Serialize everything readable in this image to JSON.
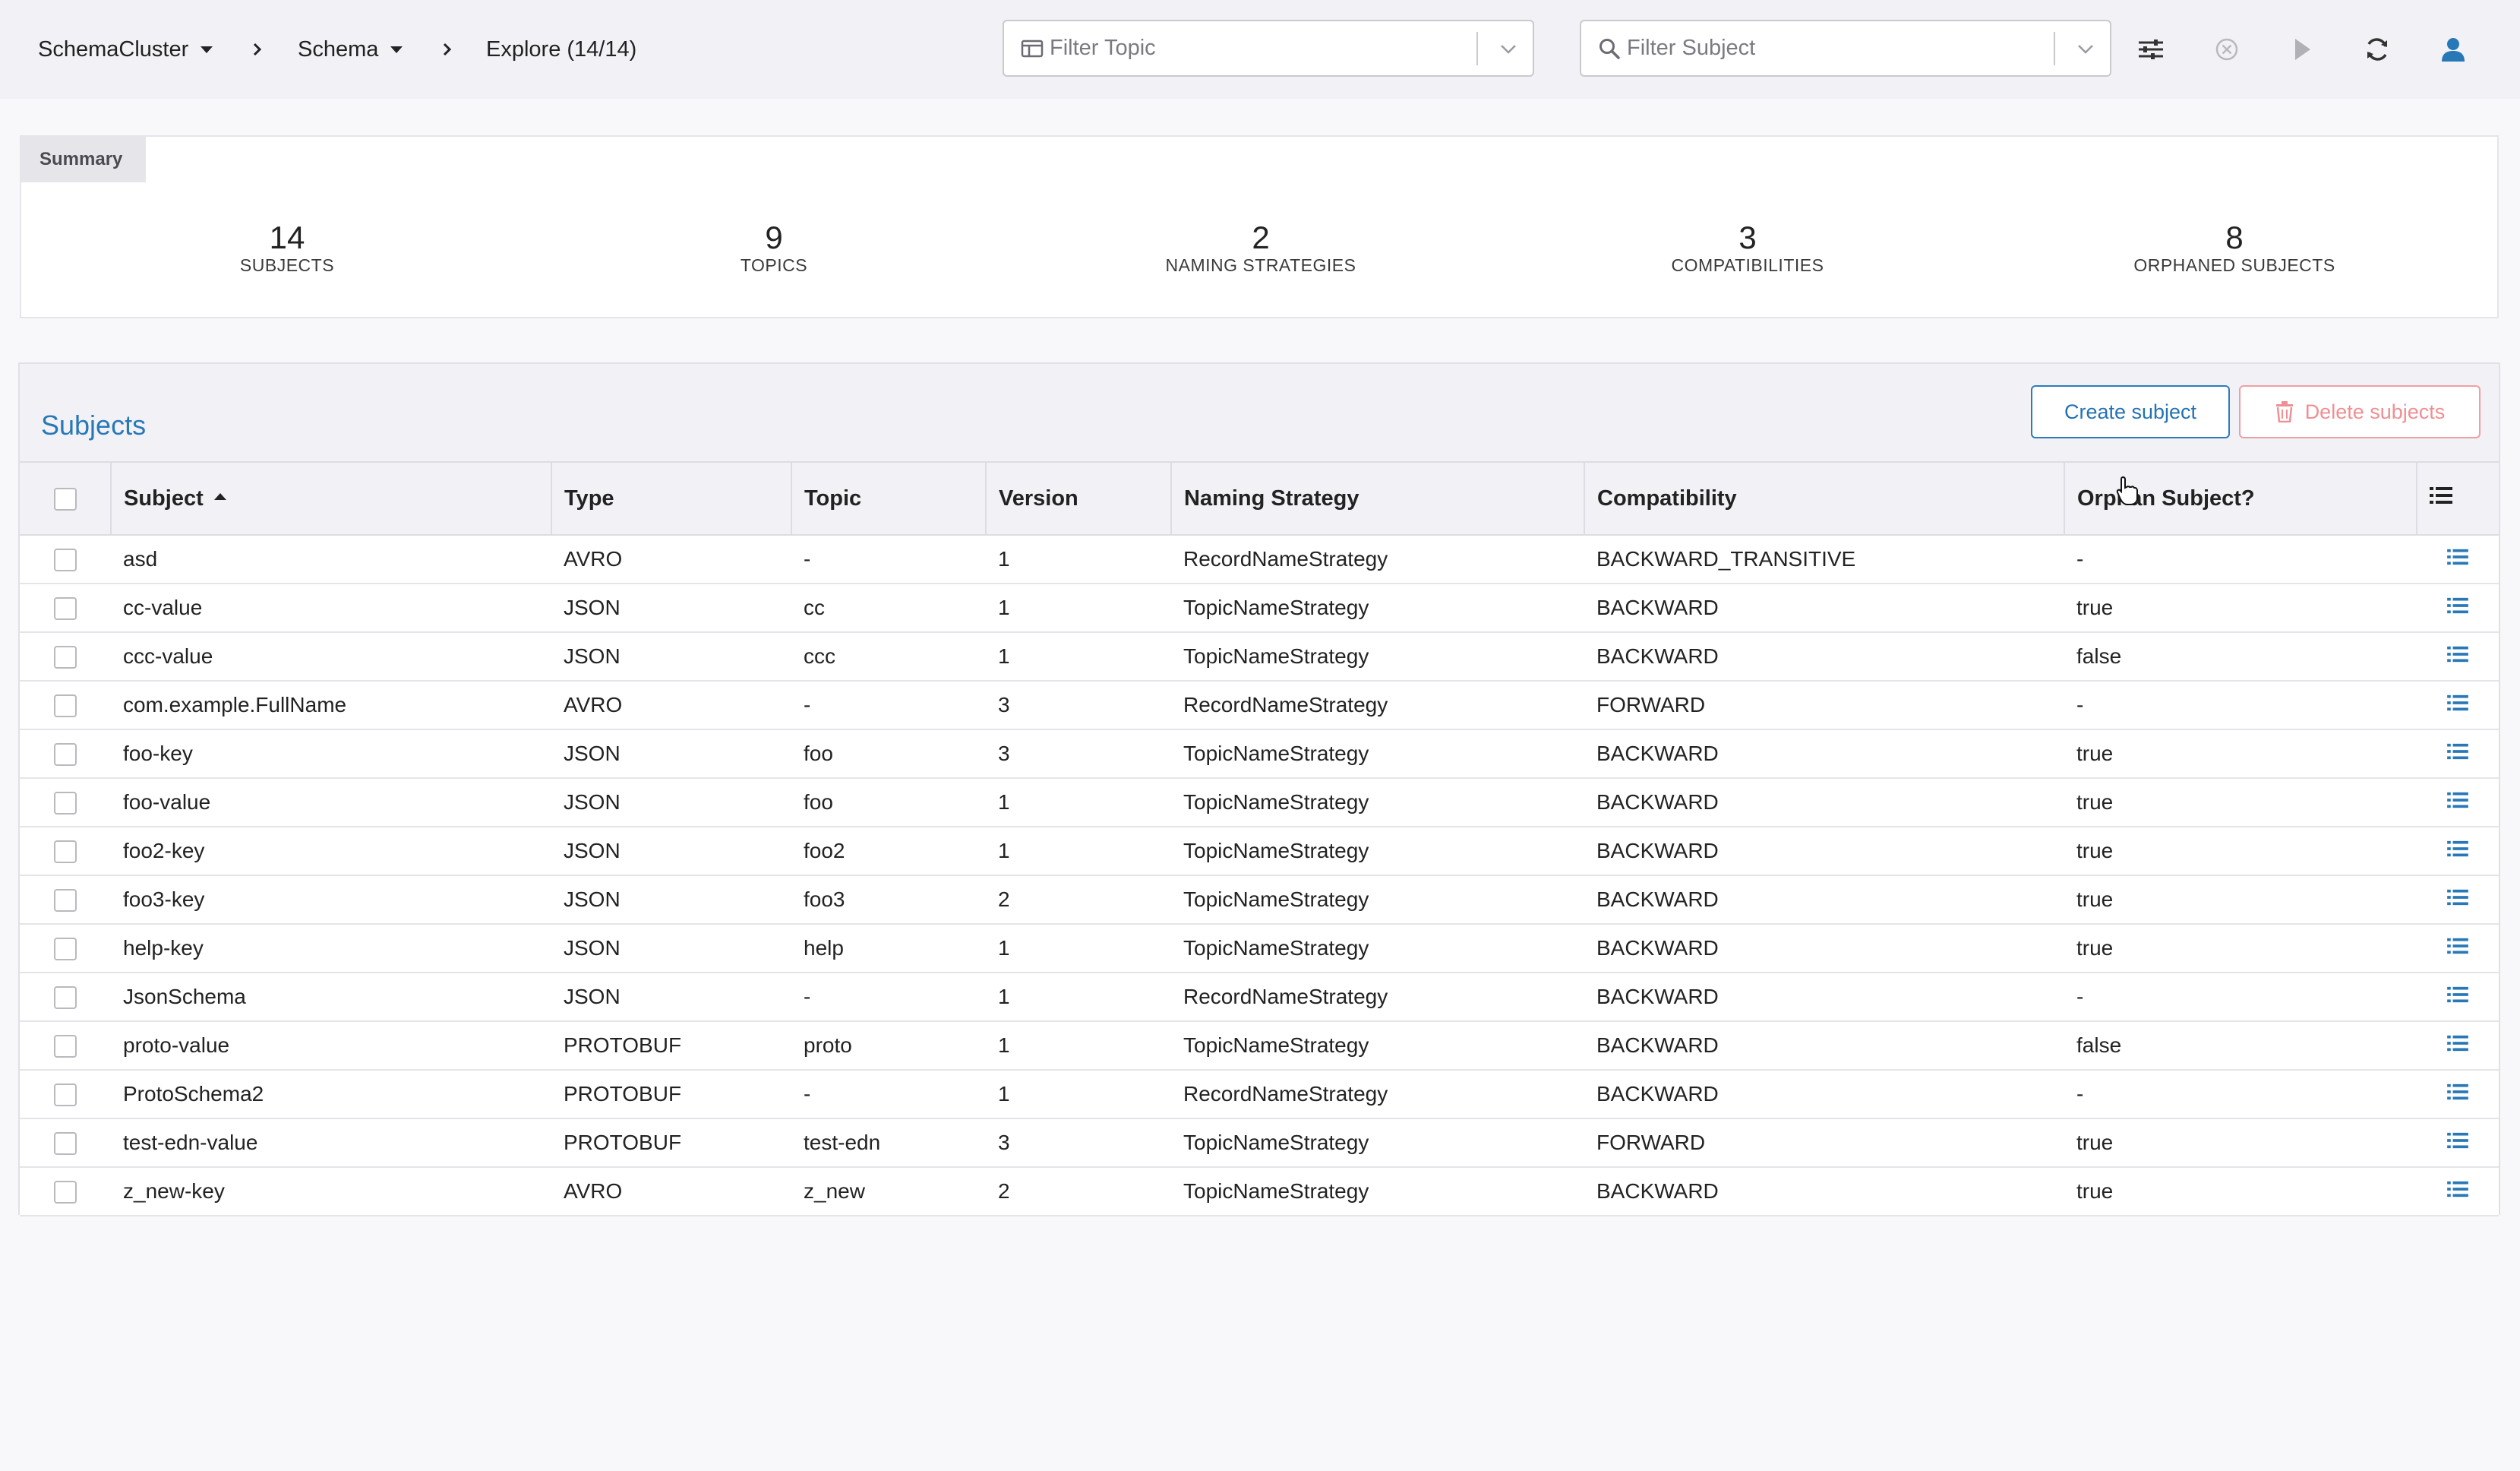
{
  "breadcrumb": {
    "cluster": "SchemaCluster",
    "section": "Schema",
    "page": "Explore (14/14)"
  },
  "filters": {
    "topic_placeholder": "Filter Topic",
    "subject_placeholder": "Filter Subject"
  },
  "toolbar_icons": [
    "settings-sliders-icon",
    "clear-circle-icon",
    "play-icon",
    "refresh-icon",
    "user-icon"
  ],
  "summary": {
    "tab": "Summary",
    "stats": [
      {
        "value": "14",
        "label": "SUBJECTS"
      },
      {
        "value": "9",
        "label": "TOPICS"
      },
      {
        "value": "2",
        "label": "NAMING STRATEGIES"
      },
      {
        "value": "3",
        "label": "COMPATIBILITIES"
      },
      {
        "value": "8",
        "label": "ORPHANED SUBJECTS"
      }
    ]
  },
  "subjects": {
    "title": "Subjects",
    "create_label": "Create subject",
    "delete_label": "Delete subjects",
    "columns": [
      "Subject",
      "Type",
      "Topic",
      "Version",
      "Naming Strategy",
      "Compatibility",
      "Orphan Subject?"
    ],
    "sort": {
      "column": "Subject",
      "direction": "ascending"
    },
    "rows": [
      [
        "asd",
        "AVRO",
        "-",
        "1",
        "RecordNameStrategy",
        "BACKWARD_TRANSITIVE",
        "-"
      ],
      [
        "cc-value",
        "JSON",
        "cc",
        "1",
        "TopicNameStrategy",
        "BACKWARD",
        "true"
      ],
      [
        "ccc-value",
        "JSON",
        "ccc",
        "1",
        "TopicNameStrategy",
        "BACKWARD",
        "false"
      ],
      [
        "com.example.FullName",
        "AVRO",
        "-",
        "3",
        "RecordNameStrategy",
        "FORWARD",
        "-"
      ],
      [
        "foo-key",
        "JSON",
        "foo",
        "3",
        "TopicNameStrategy",
        "BACKWARD",
        "true"
      ],
      [
        "foo-value",
        "JSON",
        "foo",
        "1",
        "TopicNameStrategy",
        "BACKWARD",
        "true"
      ],
      [
        "foo2-key",
        "JSON",
        "foo2",
        "1",
        "TopicNameStrategy",
        "BACKWARD",
        "true"
      ],
      [
        "foo3-key",
        "JSON",
        "foo3",
        "2",
        "TopicNameStrategy",
        "BACKWARD",
        "true"
      ],
      [
        "help-key",
        "JSON",
        "help",
        "1",
        "TopicNameStrategy",
        "BACKWARD",
        "true"
      ],
      [
        "JsonSchema",
        "JSON",
        "-",
        "1",
        "RecordNameStrategy",
        "BACKWARD",
        "-"
      ],
      [
        "proto-value",
        "PROTOBUF",
        "proto",
        "1",
        "TopicNameStrategy",
        "BACKWARD",
        "false"
      ],
      [
        "ProtoSchema2",
        "PROTOBUF",
        "-",
        "1",
        "RecordNameStrategy",
        "BACKWARD",
        "-"
      ],
      [
        "test-edn-value",
        "PROTOBUF",
        "test-edn",
        "3",
        "TopicNameStrategy",
        "FORWARD",
        "true"
      ],
      [
        "z_new-key",
        "AVRO",
        "z_new",
        "2",
        "TopicNameStrategy",
        "BACKWARD",
        "true"
      ]
    ]
  },
  "colors": {
    "accent": "#2878b8",
    "danger": "#ef8f93",
    "header_bg": "#f2f2f6"
  }
}
